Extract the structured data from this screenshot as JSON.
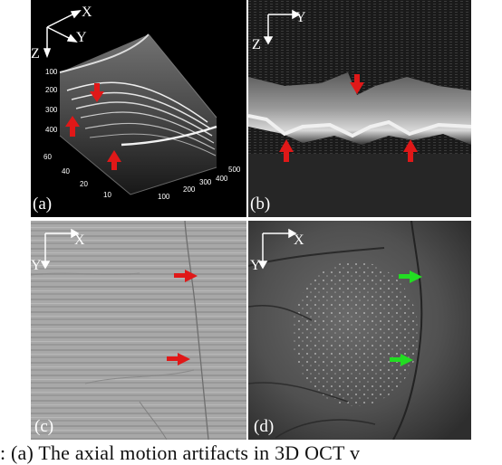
{
  "panels": {
    "a": {
      "label": "(a)",
      "axes": {
        "x": "X",
        "y": "Y",
        "z": "Z"
      },
      "z_ticks": [
        "100",
        "200",
        "300",
        "400"
      ],
      "y_ticks": [
        "60",
        "40",
        "20",
        "10"
      ],
      "x_ticks": [
        "100",
        "200",
        "300",
        "400",
        "500"
      ],
      "arrows": {
        "color": "#e01818",
        "count": 3
      }
    },
    "b": {
      "label": "(b)",
      "axes": {
        "h": "Y",
        "v": "Z"
      },
      "arrows": {
        "color": "#e01818",
        "count": 3
      }
    },
    "c": {
      "label": "(c)",
      "axes": {
        "h": "X",
        "v": "Y"
      },
      "arrows": {
        "color": "#e01818",
        "count": 2
      }
    },
    "d": {
      "label": "(d)",
      "axes": {
        "h": "X",
        "v": "Y"
      },
      "arrows": {
        "color": "#22dd22",
        "count": 2
      }
    }
  },
  "caption": {
    "text": ": (a) The axial motion artifacts in 3D OCT v"
  }
}
